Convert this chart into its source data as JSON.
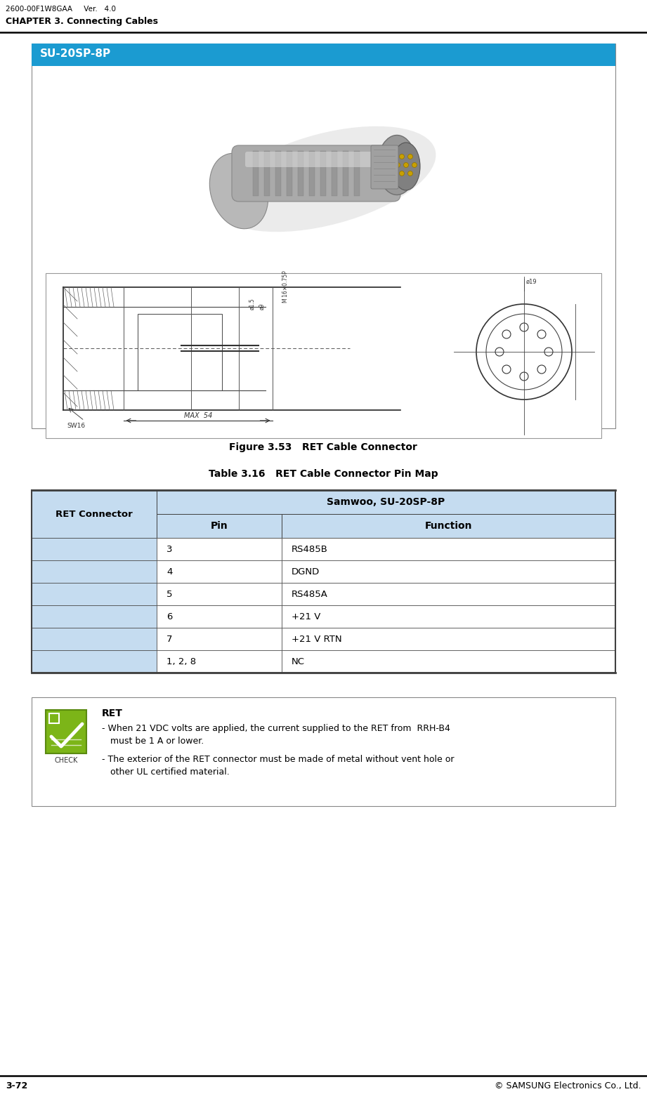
{
  "header_left": "2600-00F1W8GAA     Ver.   4.0",
  "chapter_title": "CHAPTER 3. Connecting Cables",
  "figure_label": "SU-20SP-8P",
  "figure_caption": "Figure 3.53   RET Cable Connector",
  "table_title": "Table 3.16   RET Cable Connector Pin Map",
  "table_col1_header": "RET Connector",
  "table_col2_header": "Samwoo, SU-20SP-8P",
  "table_pin_header": "Pin",
  "table_func_header": "Function",
  "table_rows": [
    [
      "3",
      "RS485B"
    ],
    [
      "4",
      "DGND"
    ],
    [
      "5",
      "RS485A"
    ],
    [
      "6",
      "+21 V"
    ],
    [
      "7",
      "+21 V RTN"
    ],
    [
      "1, 2, 8",
      "NC"
    ]
  ],
  "note_title": "RET",
  "note_line1": "- When 21 VDC volts are applied, the current supplied to the RET from  RRH-B4",
  "note_line2": "   must be 1 A or lower.",
  "note_line3": "- The exterior of the RET connector must be made of metal without vent hole or",
  "note_line4": "   other UL certified material.",
  "footer_left": "3-72",
  "footer_right": "© SAMSUNG Electronics Co., Ltd.",
  "blue_header_color": "#1B9BD1",
  "col1_bg": "#C5DCF0",
  "table_border_color": "#404040",
  "note_border_color": "#888888",
  "header_line_color": "#000000",
  "check_green": "#7CB518",
  "check_dark_green": "#5A8A10"
}
